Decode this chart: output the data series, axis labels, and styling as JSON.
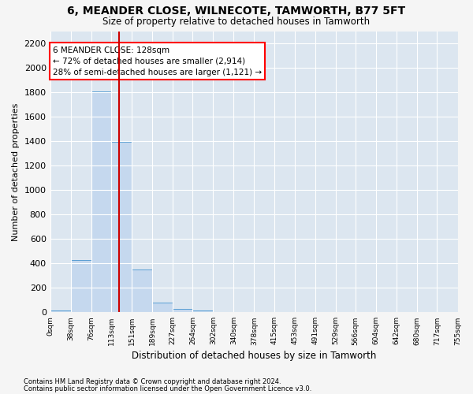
{
  "title1": "6, MEANDER CLOSE, WILNECOTE, TAMWORTH, B77 5FT",
  "title2": "Size of property relative to detached houses in Tamworth",
  "xlabel": "Distribution of detached houses by size in Tamworth",
  "ylabel": "Number of detached properties",
  "footnote1": "Contains HM Land Registry data © Crown copyright and database right 2024.",
  "footnote2": "Contains public sector information licensed under the Open Government Licence v3.0.",
  "annotation_line1": "6 MEANDER CLOSE: 128sqm",
  "annotation_line2": "← 72% of detached houses are smaller (2,914)",
  "annotation_line3": "28% of semi-detached houses are larger (1,121) →",
  "property_size": 128,
  "bin_edges": [
    0,
    38,
    76,
    113,
    151,
    189,
    227,
    264,
    302,
    340,
    378,
    415,
    453,
    491,
    529,
    566,
    604,
    642,
    680,
    717,
    755
  ],
  "bin_counts": [
    15,
    425,
    1810,
    1395,
    350,
    80,
    30,
    18,
    0,
    0,
    0,
    0,
    0,
    0,
    0,
    0,
    0,
    0,
    0,
    0
  ],
  "bar_color": "#c5d8ee",
  "bar_edge_color": "#5a9fd4",
  "line_color": "#cc0000",
  "plot_bg_color": "#dce6f0",
  "fig_bg_color": "#f5f5f5",
  "ylim": [
    0,
    2300
  ],
  "yticks": [
    0,
    200,
    400,
    600,
    800,
    1000,
    1200,
    1400,
    1600,
    1800,
    2000,
    2200
  ]
}
